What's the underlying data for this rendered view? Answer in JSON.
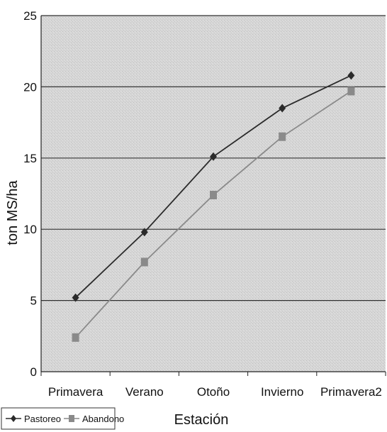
{
  "chart_data": {
    "type": "line",
    "title": "",
    "xlabel": "Estación",
    "ylabel": "ton MS/ha",
    "categories": [
      "Primavera",
      "Verano",
      "Otoño",
      "Invierno",
      "Primavera2"
    ],
    "ylim": [
      0,
      25
    ],
    "yticks": [
      0,
      5,
      10,
      15,
      20,
      25
    ],
    "grid": true,
    "legend_position": "bottom-left",
    "series": [
      {
        "name": "Pastoreo",
        "values": [
          5.2,
          9.8,
          15.1,
          18.5,
          20.8
        ],
        "color": "#2b2b2b",
        "marker": "diamond"
      },
      {
        "name": "Abandono",
        "values": [
          2.4,
          7.7,
          12.4,
          16.5,
          19.7
        ],
        "color": "#8a8a8a",
        "marker": "square"
      }
    ],
    "plot_background": "#d6d6d6",
    "gridline_color": "#333333"
  }
}
